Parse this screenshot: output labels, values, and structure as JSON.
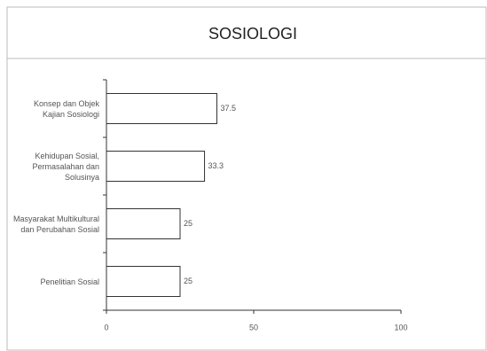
{
  "chart_data": {
    "type": "bar",
    "orientation": "horizontal",
    "title": "SOSIOLOGI",
    "categories": [
      "Konsep dan Objek Kajian Sosiologi",
      "Kehidupan Sosial, Permasalahan dan Solusinya",
      "Masyarakat Multikultural dan Perubahan Sosial",
      "Penelitian Sosial"
    ],
    "values": [
      37.5,
      33.3,
      25,
      25
    ],
    "color": "#ffffff",
    "xlim": [
      0,
      100
    ],
    "xticks": [
      0,
      50,
      100
    ],
    "grid": false
  }
}
